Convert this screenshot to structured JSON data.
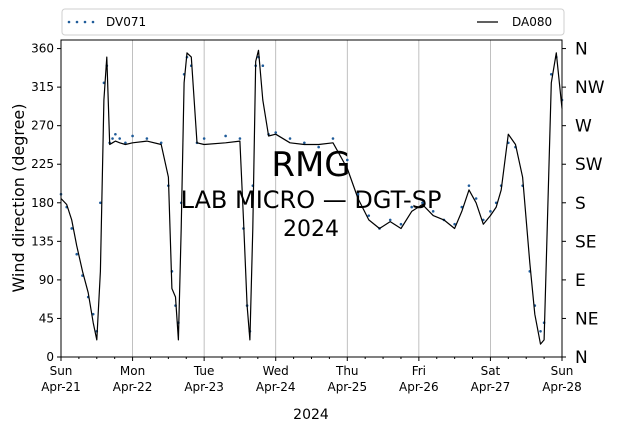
{
  "chart_data": {
    "type": "line",
    "xlabel": "2024",
    "ylabel": "Wind direction (degree)",
    "ylim": [
      0,
      370
    ],
    "yticks": [
      0,
      45,
      90,
      135,
      180,
      225,
      270,
      315,
      360
    ],
    "xlim": [
      0,
      7
    ],
    "xticks": [
      {
        "x": 0,
        "l1": "Sun",
        "l2": "Apr-21"
      },
      {
        "x": 1,
        "l1": "Mon",
        "l2": "Apr-22"
      },
      {
        "x": 2,
        "l1": "Tue",
        "l2": "Apr-23"
      },
      {
        "x": 3,
        "l1": "Wed",
        "l2": "Apr-24"
      },
      {
        "x": 4,
        "l1": "Thu",
        "l2": "Apr-25"
      },
      {
        "x": 5,
        "l1": "Fri",
        "l2": "Apr-26"
      },
      {
        "x": 6,
        "l1": "Sat",
        "l2": "Apr-27"
      },
      {
        "x": 7,
        "l1": "Sun",
        "l2": "Apr-28"
      }
    ],
    "compass": [
      {
        "y": 360,
        "label": "N"
      },
      {
        "y": 315,
        "label": "NW"
      },
      {
        "y": 270,
        "label": "W"
      },
      {
        "y": 225,
        "label": "SW"
      },
      {
        "y": 180,
        "label": "S"
      },
      {
        "y": 135,
        "label": "SE"
      },
      {
        "y": 90,
        "label": "E"
      },
      {
        "y": 45,
        "label": "NE"
      },
      {
        "y": 0,
        "label": "N"
      }
    ],
    "grid": "vertical",
    "legend": {
      "placement": "top",
      "entries": [
        "DV071",
        "DA080"
      ]
    },
    "watermark": [
      "RMG",
      "LAB MICRO — DGT-SP",
      "2024"
    ],
    "series": [
      {
        "name": "DV071",
        "style": "dots",
        "color": "#1f5b99",
        "x": [
          0.0,
          0.08,
          0.15,
          0.22,
          0.3,
          0.38,
          0.45,
          0.5,
          0.55,
          0.6,
          0.64,
          0.68,
          0.72,
          0.76,
          0.82,
          0.9,
          1.0,
          1.2,
          1.4,
          1.5,
          1.55,
          1.6,
          1.64,
          1.68,
          1.72,
          1.76,
          1.82,
          1.9,
          2.0,
          2.3,
          2.5,
          2.55,
          2.6,
          2.64,
          2.68,
          2.72,
          2.76,
          2.82,
          2.9,
          3.0,
          3.2,
          3.4,
          3.6,
          3.8,
          4.0,
          4.15,
          4.3,
          4.45,
          4.6,
          4.75,
          4.9,
          5.05,
          5.2,
          5.35,
          5.5,
          5.6,
          5.7,
          5.8,
          5.9,
          6.0,
          6.08,
          6.15,
          6.25,
          6.35,
          6.45,
          6.55,
          6.62,
          6.7,
          6.75,
          6.85,
          6.92,
          7.0
        ],
        "values": [
          190,
          175,
          150,
          120,
          95,
          70,
          50,
          30,
          180,
          320,
          340,
          250,
          255,
          260,
          255,
          250,
          258,
          255,
          250,
          200,
          100,
          60,
          40,
          180,
          330,
          350,
          340,
          250,
          255,
          258,
          255,
          150,
          60,
          30,
          200,
          340,
          350,
          340,
          260,
          262,
          255,
          250,
          245,
          255,
          230,
          190,
          165,
          150,
          160,
          155,
          175,
          180,
          170,
          160,
          155,
          175,
          200,
          185,
          160,
          170,
          180,
          200,
          250,
          245,
          200,
          100,
          60,
          30,
          40,
          330,
          350,
          300
        ]
      },
      {
        "name": "DA080",
        "style": "line",
        "color": "#000000",
        "x": [
          0.0,
          0.08,
          0.15,
          0.22,
          0.3,
          0.38,
          0.45,
          0.5,
          0.55,
          0.6,
          0.64,
          0.68,
          0.72,
          0.76,
          0.82,
          0.9,
          1.0,
          1.2,
          1.4,
          1.5,
          1.55,
          1.6,
          1.64,
          1.68,
          1.72,
          1.76,
          1.82,
          1.9,
          2.0,
          2.3,
          2.5,
          2.55,
          2.6,
          2.64,
          2.68,
          2.72,
          2.76,
          2.82,
          2.9,
          3.0,
          3.2,
          3.4,
          3.6,
          3.8,
          4.0,
          4.15,
          4.3,
          4.45,
          4.6,
          4.75,
          4.9,
          5.05,
          5.2,
          5.35,
          5.5,
          5.6,
          5.7,
          5.8,
          5.9,
          6.0,
          6.08,
          6.15,
          6.25,
          6.35,
          6.45,
          6.55,
          6.62,
          6.7,
          6.75,
          6.85,
          6.92,
          7.0
        ],
        "values": [
          185,
          178,
          160,
          130,
          100,
          75,
          40,
          20,
          100,
          300,
          350,
          248,
          250,
          252,
          250,
          248,
          250,
          252,
          248,
          210,
          80,
          70,
          20,
          150,
          320,
          355,
          350,
          250,
          248,
          250,
          252,
          160,
          60,
          20,
          150,
          345,
          358,
          300,
          258,
          260,
          250,
          248,
          248,
          250,
          220,
          185,
          160,
          150,
          158,
          150,
          170,
          178,
          165,
          160,
          150,
          170,
          195,
          180,
          155,
          165,
          175,
          195,
          260,
          248,
          210,
          110,
          50,
          15,
          20,
          320,
          355,
          290
        ]
      }
    ]
  }
}
